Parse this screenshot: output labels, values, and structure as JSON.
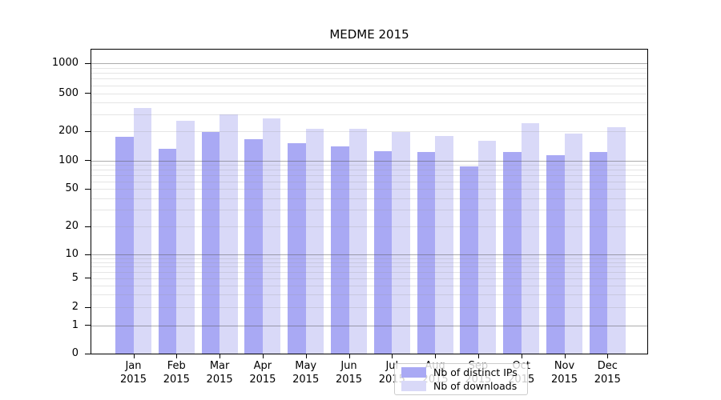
{
  "chart_data": {
    "type": "bar",
    "title": "MEDME 2015",
    "categories": [
      "Jan",
      "Feb",
      "Mar",
      "Apr",
      "May",
      "Jun",
      "Jul",
      "Aug",
      "Sep",
      "Oct",
      "Nov",
      "Dec"
    ],
    "category_year": "2015",
    "series": [
      {
        "name": "Nb of distinct IPs",
        "color": "#a9a9f4",
        "values": [
          175,
          132,
          197,
          165,
          150,
          140,
          124,
          123,
          87,
          123,
          114,
          123
        ]
      },
      {
        "name": "Nb of downloads",
        "color": "#d9d9f8",
        "values": [
          348,
          257,
          298,
          272,
          212,
          212,
          198,
          180,
          160,
          245,
          190,
          220
        ]
      }
    ],
    "yticks": [
      0,
      1,
      2,
      5,
      10,
      20,
      50,
      100,
      200,
      500,
      1000
    ],
    "xlabel": "",
    "ylabel": "",
    "yscale": "log above 1, linear 0-1",
    "ylim": [
      0,
      1400
    ],
    "grid": {
      "horizontal_major": true,
      "horizontal_minor": true,
      "major_color": "#adadad",
      "minor_color": "#e7e7e7"
    },
    "legend_position": "inside bottom-center"
  }
}
